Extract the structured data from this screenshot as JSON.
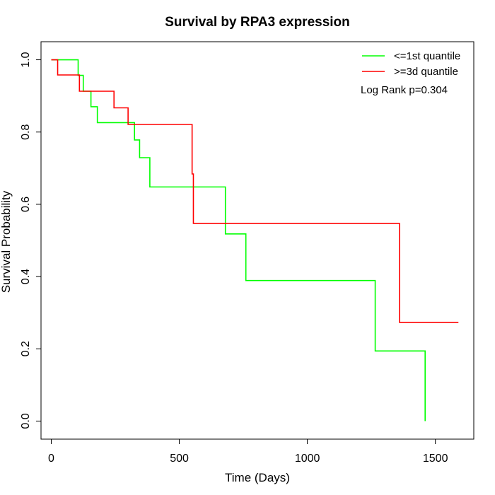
{
  "chart_data": {
    "type": "line",
    "title": "Survival by RPA3 expression",
    "xlabel": "Time (Days)",
    "ylabel": "Survival Probability",
    "xlim": [
      -40,
      1650
    ],
    "ylim": [
      -0.05,
      1.05
    ],
    "xticks": [
      0,
      500,
      1000,
      1500
    ],
    "yticks": [
      0.0,
      0.2,
      0.4,
      0.6,
      0.8,
      1.0
    ],
    "xtick_labels": [
      "0",
      "500",
      "1000",
      "1500"
    ],
    "ytick_labels": [
      "0.0",
      "0.2",
      "0.4",
      "0.6",
      "0.8",
      "1.0"
    ],
    "step": "post",
    "grid": false,
    "legend_position": "top-right",
    "annotation": "Log Rank p=0.304",
    "series": [
      {
        "name": "<=1st quantile",
        "color": "#00ff00",
        "x": [
          0,
          105,
          125,
          155,
          180,
          325,
          345,
          385,
          680,
          760,
          1265,
          1460,
          1460
        ],
        "y": [
          1.0,
          0.957,
          0.913,
          0.87,
          0.826,
          0.778,
          0.729,
          0.648,
          0.518,
          0.389,
          0.194,
          0.194,
          0.0
        ]
      },
      {
        "name": ">=3d quantile",
        "color": "#ff0000",
        "x": [
          0,
          25,
          110,
          245,
          300,
          550,
          555,
          1360,
          1590
        ],
        "y": [
          1.0,
          0.958,
          0.913,
          0.867,
          0.821,
          0.684,
          0.547,
          0.273,
          0.273
        ]
      }
    ]
  }
}
